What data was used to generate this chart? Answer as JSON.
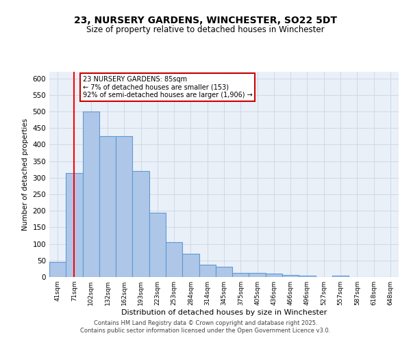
{
  "title": "23, NURSERY GARDENS, WINCHESTER, SO22 5DT",
  "subtitle": "Size of property relative to detached houses in Winchester",
  "xlabel": "Distribution of detached houses by size in Winchester",
  "ylabel": "Number of detached properties",
  "categories": [
    "41sqm",
    "71sqm",
    "102sqm",
    "132sqm",
    "162sqm",
    "193sqm",
    "223sqm",
    "253sqm",
    "284sqm",
    "314sqm",
    "345sqm",
    "375sqm",
    "405sqm",
    "436sqm",
    "466sqm",
    "496sqm",
    "527sqm",
    "557sqm",
    "587sqm",
    "618sqm",
    "648sqm"
  ],
  "bar_heights": [
    45,
    315,
    500,
    425,
    425,
    320,
    195,
    105,
    70,
    37,
    30,
    13,
    13,
    10,
    7,
    5,
    1,
    4,
    0,
    0,
    0
  ],
  "bar_color": "#aec6e8",
  "bar_edge_color": "#5b9bd5",
  "red_line_x": 1,
  "annotation_text": "23 NURSERY GARDENS: 85sqm\n← 7% of detached houses are smaller (153)\n92% of semi-detached houses are larger (1,906) →",
  "annotation_box_color": "#ffffff",
  "annotation_box_edge": "#cc0000",
  "grid_color": "#d0d8e8",
  "background_color": "#eaf0f8",
  "footer": "Contains HM Land Registry data © Crown copyright and database right 2025.\nContains public sector information licensed under the Open Government Licence v3.0.",
  "ylim": [
    0,
    620
  ],
  "yticks": [
    0,
    50,
    100,
    150,
    200,
    250,
    300,
    350,
    400,
    450,
    500,
    550,
    600
  ],
  "title_fontsize": 10,
  "subtitle_fontsize": 8.5
}
